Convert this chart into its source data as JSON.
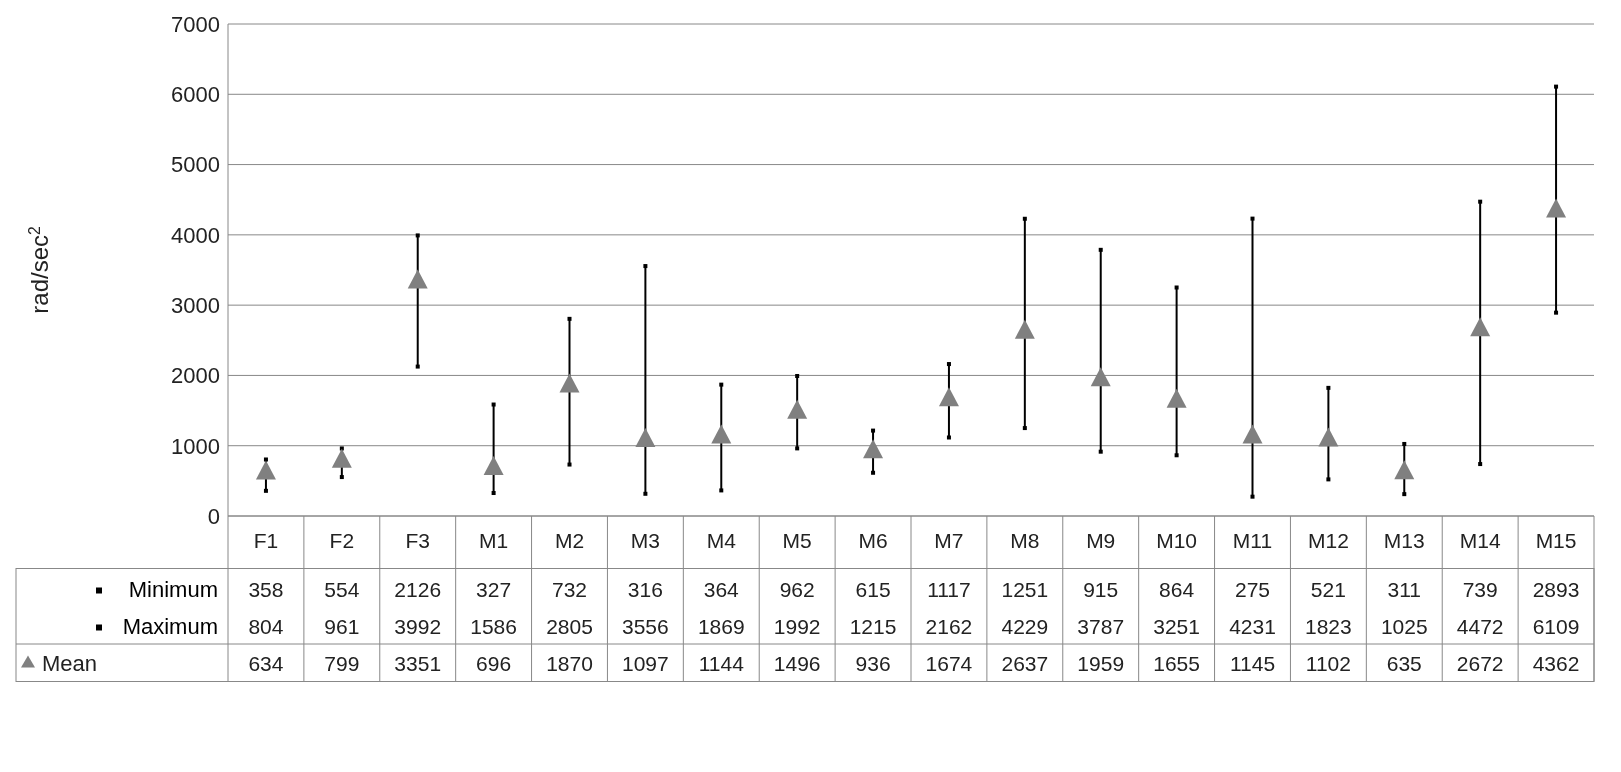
{
  "chart_data": {
    "type": "scatter",
    "ylabel": "rad/sec$^{2}$",
    "categories": [
      "F1",
      "F2",
      "F3",
      "M1",
      "M2",
      "M3",
      "M4",
      "M5",
      "M6",
      "M7",
      "M8",
      "M9",
      "M10",
      "M11",
      "M12",
      "M13",
      "M14",
      "M15"
    ],
    "series": [
      {
        "name": "Minimum",
        "color": "#000000",
        "marker": "square",
        "values": [
          358,
          554,
          2126,
          327,
          732,
          316,
          364,
          962,
          615,
          1117,
          1251,
          915,
          864,
          275,
          521,
          311,
          739,
          2893
        ]
      },
      {
        "name": "Maximum",
        "color": "#000000",
        "marker": "square",
        "values": [
          804,
          961,
          3992,
          1586,
          2805,
          3556,
          1869,
          1992,
          1215,
          2162,
          4229,
          3787,
          3251,
          4231,
          1823,
          1025,
          4472,
          6109
        ]
      },
      {
        "name": "Mean",
        "color": "#808080",
        "values": [
          634,
          799,
          3351,
          696,
          1870,
          1097,
          1144,
          1496,
          936,
          1674,
          2637,
          1959,
          1655,
          1145,
          1102,
          635,
          2672,
          4362
        ]
      }
    ],
    "ylim": [
      0,
      7000
    ],
    "yticks": [
      0,
      1000,
      2000,
      3000,
      4000,
      5000,
      6000,
      7000
    ],
    "grid": "y",
    "legend": "bottom",
    "marker": "triangle",
    "data_labels": true
  }
}
